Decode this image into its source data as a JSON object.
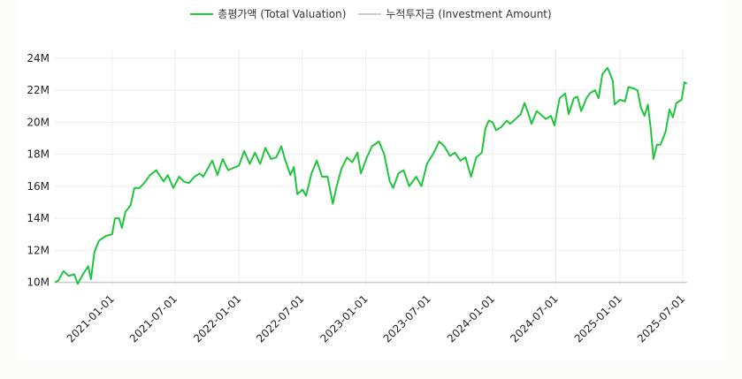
{
  "chart_data": {
    "type": "line",
    "title": "",
    "xlabel": "",
    "ylabel": "",
    "legend_position": "top-center",
    "grid": true,
    "xlim": [
      "2020-07-20",
      "2025-07-14"
    ],
    "ylim": [
      9.7,
      24.6
    ],
    "y_unit": "M",
    "x_ticks": [
      "2021-01-01",
      "2021-07-01",
      "2022-01-01",
      "2022-07-01",
      "2023-01-01",
      "2023-07-01",
      "2024-01-01",
      "2024-07-01",
      "2025-01-01",
      "2025-07-01"
    ],
    "y_ticks": [
      10,
      12,
      14,
      16,
      18,
      20,
      22,
      24
    ],
    "y_tick_labels": [
      "10M",
      "12M",
      "14M",
      "16M",
      "18M",
      "20M",
      "22M",
      "24M"
    ],
    "series": [
      {
        "name": "총평가액 (Total Valuation)",
        "color": "#1fc63d",
        "x": [
          "2020-07-20",
          "2020-07-30",
          "2020-08-14",
          "2020-08-29",
          "2020-09-14",
          "2020-09-24",
          "2020-10-09",
          "2020-10-24",
          "2020-11-01",
          "2020-11-11",
          "2020-11-24",
          "2020-12-14",
          "2021-01-01",
          "2021-01-09",
          "2021-01-21",
          "2021-01-29",
          "2021-02-08",
          "2021-02-23",
          "2021-03-06",
          "2021-03-21",
          "2021-04-03",
          "2021-04-20",
          "2021-05-08",
          "2021-05-29",
          "2021-06-10",
          "2021-06-26",
          "2021-07-13",
          "2021-07-26",
          "2021-08-10",
          "2021-08-26",
          "2021-09-10",
          "2021-09-20",
          "2021-10-16",
          "2021-10-31",
          "2021-11-15",
          "2021-12-01",
          "2021-12-11",
          "2022-01-01",
          "2022-01-16",
          "2022-02-01",
          "2022-02-16",
          "2022-03-03",
          "2022-03-18",
          "2022-04-03",
          "2022-04-18",
          "2022-05-03",
          "2022-05-13",
          "2022-05-29",
          "2022-06-08",
          "2022-06-18",
          "2022-07-03",
          "2022-07-13",
          "2022-07-29",
          "2022-08-13",
          "2022-08-28",
          "2022-09-13",
          "2022-09-28",
          "2022-10-08",
          "2022-10-23",
          "2022-11-08",
          "2022-11-23",
          "2022-12-08",
          "2022-12-18",
          "2023-01-04",
          "2023-01-19",
          "2023-02-08",
          "2023-02-23",
          "2023-03-11",
          "2023-03-21",
          "2023-04-05",
          "2023-04-20",
          "2023-05-06",
          "2023-05-26",
          "2023-06-10",
          "2023-06-26",
          "2023-07-16",
          "2023-07-31",
          "2023-08-15",
          "2023-08-31",
          "2023-09-15",
          "2023-09-30",
          "2023-10-15",
          "2023-10-31",
          "2023-11-15",
          "2023-12-01",
          "2023-12-11",
          "2023-12-21",
          "2024-01-01",
          "2024-01-11",
          "2024-01-26",
          "2024-02-11",
          "2024-02-21",
          "2024-03-07",
          "2024-03-22",
          "2024-04-02",
          "2024-04-12",
          "2024-04-22",
          "2024-05-07",
          "2024-05-23",
          "2024-06-02",
          "2024-06-17",
          "2024-06-27",
          "2024-07-12",
          "2024-07-28",
          "2024-08-07",
          "2024-08-22",
          "2024-09-01",
          "2024-09-12",
          "2024-09-27",
          "2024-10-07",
          "2024-10-22",
          "2024-11-01",
          "2024-11-12",
          "2024-11-27",
          "2024-12-12",
          "2024-12-17",
          "2025-01-01",
          "2025-01-16",
          "2025-01-26",
          "2025-02-11",
          "2025-02-21",
          "2025-03-03",
          "2025-03-13",
          "2025-03-23",
          "2025-03-31",
          "2025-04-08",
          "2025-04-18",
          "2025-04-28",
          "2025-05-13",
          "2025-05-24",
          "2025-06-03",
          "2025-06-13",
          "2025-06-28",
          "2025-07-06",
          "2025-07-13"
        ],
        "values": [
          10.0,
          10.1,
          10.7,
          10.4,
          10.5,
          9.9,
          10.5,
          11.0,
          10.2,
          11.9,
          12.6,
          12.9,
          13.0,
          14.0,
          14.0,
          13.4,
          14.4,
          14.8,
          15.9,
          15.9,
          16.2,
          16.7,
          17.0,
          16.3,
          16.7,
          15.9,
          16.6,
          16.3,
          16.2,
          16.6,
          16.8,
          16.6,
          17.6,
          16.7,
          17.7,
          17.0,
          17.1,
          17.3,
          18.2,
          17.4,
          18.1,
          17.4,
          18.4,
          17.7,
          17.8,
          18.5,
          17.7,
          16.7,
          17.2,
          15.5,
          15.8,
          15.4,
          16.8,
          17.6,
          16.6,
          16.6,
          14.9,
          15.9,
          17.1,
          17.8,
          17.5,
          18.1,
          16.8,
          17.8,
          18.5,
          18.8,
          18.0,
          16.3,
          15.9,
          16.8,
          17.0,
          16.0,
          16.6,
          16.0,
          17.4,
          18.1,
          18.8,
          18.5,
          17.9,
          18.1,
          17.6,
          17.8,
          16.6,
          17.8,
          18.1,
          19.6,
          20.1,
          20.0,
          19.5,
          19.7,
          20.1,
          19.9,
          20.2,
          20.5,
          21.2,
          20.6,
          19.9,
          20.7,
          20.4,
          20.2,
          20.4,
          19.8,
          21.5,
          21.8,
          20.5,
          21.5,
          21.6,
          20.7,
          21.5,
          21.8,
          22.0,
          21.5,
          23.0,
          23.4,
          22.6,
          21.1,
          21.4,
          21.3,
          22.2,
          22.1,
          22.0,
          20.9,
          20.4,
          21.1,
          19.6,
          17.7,
          18.6,
          18.6,
          19.4,
          20.8,
          20.3,
          21.2,
          21.4,
          22.5,
          22.4
        ]
      },
      {
        "name": "누적투자금 (Investment Amount)",
        "color": "#cccccc",
        "x": [
          "2020-07-20",
          "2025-07-14"
        ],
        "values": [
          10.0,
          10.0
        ]
      }
    ]
  }
}
